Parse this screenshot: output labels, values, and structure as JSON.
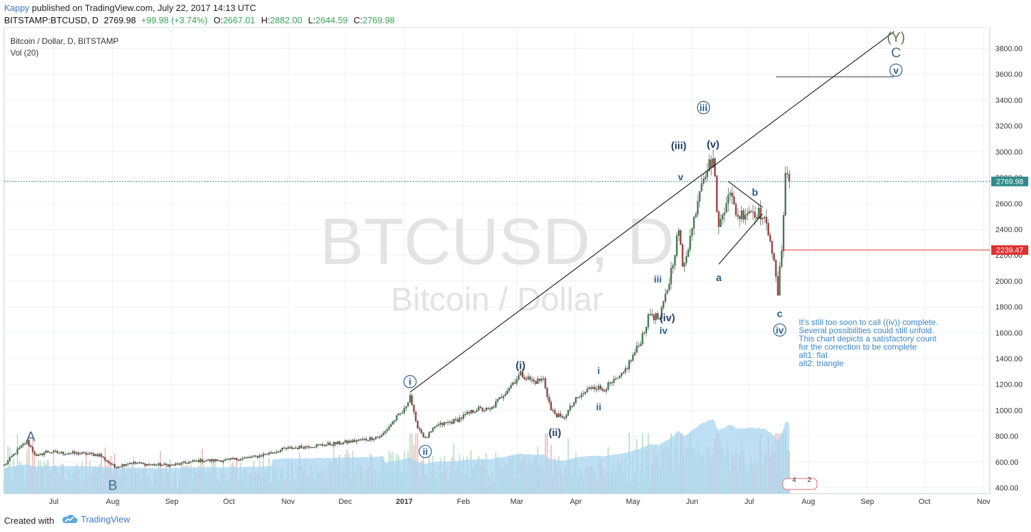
{
  "header": {
    "author": "Kappy",
    "published": "published on TradingView.com, July 22, 2017 14:13 UTC",
    "symbol": "BITSTAMP:BTCUSD, D",
    "last": "2769.98",
    "change": "+99.98 (+3.74%)",
    "o_label": "O:",
    "o": "2667.01",
    "h_label": "H:",
    "h": "2882.00",
    "l_label": "L:",
    "l": "2644.59",
    "c_label": "C:",
    "c": "2769.98"
  },
  "chart_data": {
    "type": "candlestick",
    "title": "Bitcoin / Dollar, D, BITSTAMP",
    "indicator": "Vol (20)",
    "watermark_symbol": "BTCUSD, D",
    "watermark_name": "Bitcoin / Dollar",
    "y_axis": {
      "min": 300,
      "max": 3900,
      "ticks": [
        400,
        600,
        800,
        1000,
        1200,
        1400,
        1600,
        1800,
        2000,
        2200,
        2400,
        2600,
        2800,
        3000,
        3200,
        3400,
        3600,
        3800
      ],
      "tick_labels": [
        "400.00",
        "600.00",
        "800.00",
        "1000.00",
        "1200.00",
        "1400.00",
        "1600.00",
        "1800.00",
        "2000.00",
        "2200.00",
        "2400.00",
        "2600.00",
        "2800.00",
        "3000.00",
        "3200.00",
        "3400.00",
        "3600.00",
        "3800.00"
      ]
    },
    "x_axis": {
      "start": "2016-06-05",
      "end": "2017-10-31",
      "labels": [
        {
          "date": "2016-07-01",
          "text": "Jul"
        },
        {
          "date": "2016-08-01",
          "text": "Aug"
        },
        {
          "date": "2016-09-01",
          "text": "Sep"
        },
        {
          "date": "2016-10-01",
          "text": "Oct"
        },
        {
          "date": "2016-11-01",
          "text": "Nov"
        },
        {
          "date": "2016-12-01",
          "text": "Dec"
        },
        {
          "date": "2017-01-01",
          "text": "2017"
        },
        {
          "date": "2017-02-01",
          "text": "Feb"
        },
        {
          "date": "2017-03-01",
          "text": "Mar"
        },
        {
          "date": "2017-04-01",
          "text": "Apr"
        },
        {
          "date": "2017-05-01",
          "text": "May"
        },
        {
          "date": "2017-06-01",
          "text": "Jun"
        },
        {
          "date": "2017-07-01",
          "text": "Jul"
        },
        {
          "date": "2017-08-01",
          "text": "Aug"
        },
        {
          "date": "2017-09-01",
          "text": "Sep"
        },
        {
          "date": "2017-10-01",
          "text": "Oct"
        },
        {
          "date": "2017-11-01",
          "text": "Nov"
        }
      ]
    },
    "price_path": [
      {
        "date": "2016-06-05",
        "v": 575
      },
      {
        "date": "2016-06-12",
        "v": 690
      },
      {
        "date": "2016-06-17",
        "v": 760
      },
      {
        "date": "2016-06-22",
        "v": 640
      },
      {
        "date": "2016-06-27",
        "v": 680
      },
      {
        "date": "2016-07-05",
        "v": 670
      },
      {
        "date": "2016-07-15",
        "v": 665
      },
      {
        "date": "2016-07-25",
        "v": 655
      },
      {
        "date": "2016-08-02",
        "v": 560
      },
      {
        "date": "2016-08-10",
        "v": 595
      },
      {
        "date": "2016-08-20",
        "v": 580
      },
      {
        "date": "2016-09-01",
        "v": 575
      },
      {
        "date": "2016-09-15",
        "v": 610
      },
      {
        "date": "2016-10-01",
        "v": 615
      },
      {
        "date": "2016-10-15",
        "v": 640
      },
      {
        "date": "2016-10-30",
        "v": 700
      },
      {
        "date": "2016-11-10",
        "v": 720
      },
      {
        "date": "2016-11-25",
        "v": 740
      },
      {
        "date": "2016-12-10",
        "v": 770
      },
      {
        "date": "2016-12-20",
        "v": 800
      },
      {
        "date": "2016-12-27",
        "v": 930
      },
      {
        "date": "2017-01-01",
        "v": 1000
      },
      {
        "date": "2017-01-04",
        "v": 1120
      },
      {
        "date": "2017-01-07",
        "v": 900
      },
      {
        "date": "2017-01-12",
        "v": 780
      },
      {
        "date": "2017-01-18",
        "v": 880
      },
      {
        "date": "2017-01-28",
        "v": 920
      },
      {
        "date": "2017-02-08",
        "v": 1010
      },
      {
        "date": "2017-02-15",
        "v": 1000
      },
      {
        "date": "2017-02-25",
        "v": 1180
      },
      {
        "date": "2017-03-03",
        "v": 1280
      },
      {
        "date": "2017-03-10",
        "v": 1220
      },
      {
        "date": "2017-03-15",
        "v": 1240
      },
      {
        "date": "2017-03-19",
        "v": 1000
      },
      {
        "date": "2017-03-25",
        "v": 930
      },
      {
        "date": "2017-04-01",
        "v": 1080
      },
      {
        "date": "2017-04-10",
        "v": 1190
      },
      {
        "date": "2017-04-15",
        "v": 1160
      },
      {
        "date": "2017-04-25",
        "v": 1260
      },
      {
        "date": "2017-05-04",
        "v": 1500
      },
      {
        "date": "2017-05-10",
        "v": 1750
      },
      {
        "date": "2017-05-15",
        "v": 1700
      },
      {
        "date": "2017-05-20",
        "v": 2000
      },
      {
        "date": "2017-05-25",
        "v": 2400
      },
      {
        "date": "2017-05-27",
        "v": 2100
      },
      {
        "date": "2017-06-01",
        "v": 2400
      },
      {
        "date": "2017-06-06",
        "v": 2800
      },
      {
        "date": "2017-06-12",
        "v": 2950
      },
      {
        "date": "2017-06-15",
        "v": 2400
      },
      {
        "date": "2017-06-20",
        "v": 2700
      },
      {
        "date": "2017-06-25",
        "v": 2500
      },
      {
        "date": "2017-07-01",
        "v": 2550
      },
      {
        "date": "2017-07-07",
        "v": 2520
      },
      {
        "date": "2017-07-12",
        "v": 2350
      },
      {
        "date": "2017-07-16",
        "v": 1900
      },
      {
        "date": "2017-07-18",
        "v": 2250
      },
      {
        "date": "2017-07-20",
        "v": 2850
      },
      {
        "date": "2017-07-22",
        "v": 2770
      }
    ],
    "horizontal_levels": [
      {
        "value": 2769.98,
        "label": "2769.98",
        "color": "#2e8b8b",
        "style": "dotted"
      },
      {
        "value": 2239.47,
        "label": "2239.47",
        "color": "#e03030",
        "style": "solid",
        "from": "2017-07-18"
      },
      {
        "value": 3580,
        "color": "#333333",
        "style": "solid",
        "from": "2017-07-15",
        "to": "2017-09-15"
      }
    ],
    "trend_lines": [
      {
        "from": {
          "date": "2017-01-04",
          "v": 1140
        },
        "to": {
          "date": "2017-09-15",
          "v": 3930
        }
      },
      {
        "from": {
          "date": "2017-06-15",
          "v": 2130
        },
        "to": {
          "date": "2017-07-08",
          "v": 2520
        }
      },
      {
        "from": {
          "date": "2017-06-20",
          "v": 2770
        },
        "to": {
          "date": "2017-07-08",
          "v": 2570
        }
      }
    ],
    "wave_labels": [
      {
        "text": "A",
        "date": "2016-06-19",
        "v": 760,
        "circled": false,
        "color": "#4a6a8a",
        "size": 20
      },
      {
        "text": "B",
        "date": "2016-08-01",
        "v": 385,
        "circled": false,
        "color": "#4a6a8a",
        "size": 20
      },
      {
        "text": "i",
        "date": "2017-01-04",
        "v": 1200,
        "circled": true,
        "color": "#2b5e8c",
        "size": 14
      },
      {
        "text": "ii",
        "date": "2017-01-12",
        "v": 660,
        "circled": true,
        "color": "#2b5e8c",
        "size": 14
      },
      {
        "text": "(i)",
        "date": "2017-03-03",
        "v": 1320,
        "circled": false,
        "color": "#1f3b66",
        "size": 15
      },
      {
        "text": "(ii)",
        "date": "2017-03-21",
        "v": 800,
        "circled": false,
        "color": "#1f3b66",
        "size": 15
      },
      {
        "text": "i",
        "date": "2017-04-13",
        "v": 1280,
        "circled": false,
        "color": "#2b5e8c",
        "size": 14
      },
      {
        "text": "ii",
        "date": "2017-04-13",
        "v": 1000,
        "circled": false,
        "color": "#2b5e8c",
        "size": 14
      },
      {
        "text": "iii",
        "date": "2017-05-14",
        "v": 1990,
        "circled": false,
        "color": "#2b5e8c",
        "size": 14
      },
      {
        "text": "iv",
        "date": "2017-05-17",
        "v": 1590,
        "circled": false,
        "color": "#2b5e8c",
        "size": 14
      },
      {
        "text": "(iv)",
        "date": "2017-05-19",
        "v": 1690,
        "circled": false,
        "color": "#1f3b66",
        "size": 15
      },
      {
        "text": "v",
        "date": "2017-05-26",
        "v": 2780,
        "circled": false,
        "color": "#2b5e8c",
        "size": 14
      },
      {
        "text": "(iii)",
        "date": "2017-05-25",
        "v": 3020,
        "circled": false,
        "color": "#1f3b66",
        "size": 15
      },
      {
        "text": "(v)",
        "date": "2017-06-12",
        "v": 3030,
        "circled": false,
        "color": "#1f3b66",
        "size": 15
      },
      {
        "text": "iii",
        "date": "2017-06-07",
        "v": 3320,
        "circled": true,
        "color": "#2b5e8c",
        "size": 14
      },
      {
        "text": "a",
        "date": "2017-06-15",
        "v": 2000,
        "circled": false,
        "color": "#2b5e8c",
        "size": 15
      },
      {
        "text": "b",
        "date": "2017-07-04",
        "v": 2660,
        "circled": false,
        "color": "#2b5e8c",
        "size": 15
      },
      {
        "text": "c",
        "date": "2017-07-17",
        "v": 1720,
        "circled": false,
        "color": "#2b5e8c",
        "size": 15
      },
      {
        "text": "iv",
        "date": "2017-07-17",
        "v": 1600,
        "circled": true,
        "color": "#2b5e8c",
        "size": 14
      },
      {
        "text": "(Y)",
        "date": "2017-09-16",
        "v": 3850,
        "circled": false,
        "color": "#5a7a45",
        "size": 20
      },
      {
        "text": "C",
        "date": "2017-09-16",
        "v": 3730,
        "circled": false,
        "color": "#4a6a8a",
        "size": 20
      },
      {
        "text": "v",
        "date": "2017-09-16",
        "v": 3610,
        "circled": true,
        "color": "#2b5e8c",
        "size": 14
      }
    ],
    "note": {
      "date": "2017-07-27",
      "v": 1660,
      "lines": [
        "It's still too soon to call ((iv)) complete.",
        "Several possibilities could still unfold.",
        "This chart depicts a satisfactory count",
        "for the correction to be complete",
        "alt1: flat",
        "alt2: triangle"
      ],
      "color": "#3a86c8"
    },
    "bottom_badges": [
      "4",
      "2"
    ]
  },
  "footer": {
    "created": "Created with",
    "brand": "TradingView"
  },
  "colors": {
    "up": "#3a8a4a",
    "down": "#b03a3a",
    "volume_area": "#a9d4f0",
    "grid": "#eef0f3",
    "watermark": "#e3e3e3"
  }
}
